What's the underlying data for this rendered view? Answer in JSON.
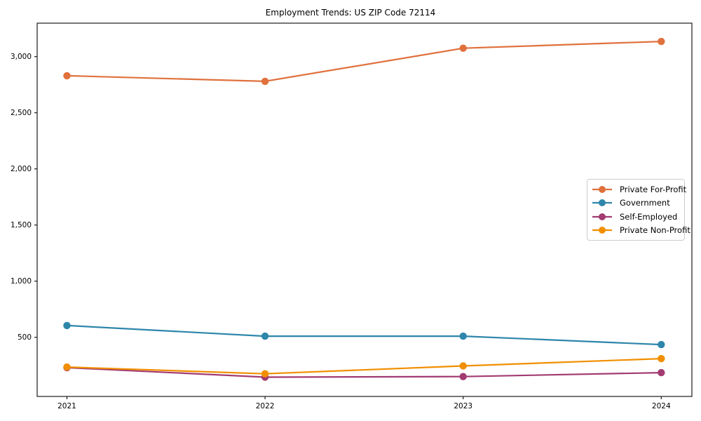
{
  "chart_data": {
    "type": "line",
    "title": "Employment Trends: US ZIP Code 72114",
    "xlabel": "",
    "ylabel": "",
    "grid": false,
    "legend_position": "center right",
    "x": [
      2021,
      2022,
      2023,
      2024
    ],
    "x_tick_labels": [
      "2021",
      "2022",
      "2023",
      "2024"
    ],
    "y_ticks": [
      500,
      1000,
      1500,
      2000,
      2500,
      3000
    ],
    "y_tick_labels": [
      "500",
      "1,000",
      "1,500",
      "2,000",
      "2,500",
      "3,000"
    ],
    "ylim": [
      -30,
      3300
    ],
    "series": [
      {
        "name": "Private For-Profit",
        "color": "#E0713C",
        "values": [
          2830,
          2780,
          3075,
          3135
        ]
      },
      {
        "name": "Government",
        "color": "#2E86AB",
        "values": [
          605,
          510,
          510,
          435
        ]
      },
      {
        "name": "Self-Employed",
        "color": "#A23B72",
        "values": [
          230,
          145,
          150,
          185
        ]
      },
      {
        "name": "Private Non-Profit",
        "color": "#F18F01",
        "values": [
          235,
          175,
          245,
          310
        ]
      }
    ]
  }
}
